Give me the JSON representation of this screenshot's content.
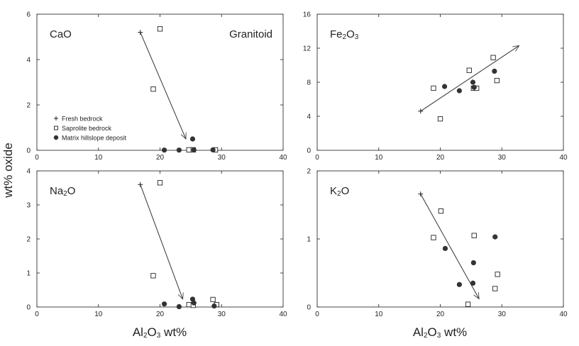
{
  "figure": {
    "ylabel": "wt% oxide",
    "xlabel_left": "Al2O3 wt%",
    "xlabel_right": "Al2O3 wt%",
    "annotation": "Granitoid"
  },
  "legend": {
    "entries": [
      {
        "label": "Fresh bedrock",
        "marker": "plus"
      },
      {
        "label": "Saprolite bedrock",
        "marker": "open-square"
      },
      {
        "label": "Matrix hillslope deposit",
        "marker": "filled-circle"
      }
    ]
  },
  "chart_data": [
    {
      "type": "scatter",
      "panel": "top-left",
      "title": "CaO",
      "xlabel": "",
      "ylabel": "",
      "xlim": [
        0,
        40
      ],
      "ylim": [
        0,
        6
      ],
      "xticks": [
        0,
        10,
        20,
        30,
        40
      ],
      "yticks": [
        0,
        2,
        4,
        6
      ],
      "series": [
        {
          "name": "Fresh bedrock",
          "marker": "plus",
          "x": [
            16.8
          ],
          "y": [
            5.2
          ]
        },
        {
          "name": "Saprolite bedrock",
          "marker": "open-square",
          "x": [
            20.0,
            18.9,
            24.7,
            25.4,
            29.0
          ],
          "y": [
            5.35,
            2.7,
            0.02,
            0.02,
            0.02
          ]
        },
        {
          "name": "Matrix hillslope deposit",
          "marker": "filled-circle",
          "x": [
            20.7,
            23.1,
            25.3,
            25.5,
            28.6
          ],
          "y": [
            0.01,
            0.01,
            0.5,
            0.02,
            0.02
          ]
        }
      ],
      "arrow": {
        "from": [
          16.8,
          5.2
        ],
        "to": [
          24.2,
          0.5
        ]
      }
    },
    {
      "type": "scatter",
      "panel": "top-right",
      "title": "Fe2O3",
      "xlabel": "",
      "ylabel": "",
      "xlim": [
        0,
        40
      ],
      "ylim": [
        0,
        16
      ],
      "xticks": [
        0,
        10,
        20,
        30,
        40
      ],
      "yticks": [
        0,
        4,
        8,
        12,
        16
      ],
      "series": [
        {
          "name": "Fresh bedrock",
          "marker": "plus",
          "x": [
            16.8
          ],
          "y": [
            4.6
          ]
        },
        {
          "name": "Saprolite bedrock",
          "marker": "open-square",
          "x": [
            18.9,
            20.0,
            24.7,
            25.4,
            25.9,
            28.6,
            29.2
          ],
          "y": [
            7.3,
            3.7,
            9.4,
            7.3,
            7.3,
            10.9,
            8.2
          ]
        },
        {
          "name": "Matrix hillslope deposit",
          "marker": "filled-circle",
          "x": [
            20.7,
            23.1,
            25.3,
            25.5,
            28.8
          ],
          "y": [
            7.5,
            7.0,
            8.0,
            7.4,
            9.3
          ]
        }
      ],
      "arrow": {
        "from": [
          16.8,
          4.6
        ],
        "to": [
          32.8,
          12.3
        ]
      }
    },
    {
      "type": "scatter",
      "panel": "bottom-left",
      "title": "Na2O",
      "xlabel": "Al2O3 wt%",
      "ylabel": "",
      "xlim": [
        0,
        40
      ],
      "ylim": [
        0,
        4
      ],
      "xticks": [
        0,
        10,
        20,
        30,
        40
      ],
      "yticks": [
        0,
        1,
        2,
        3,
        4
      ],
      "series": [
        {
          "name": "Fresh bedrock",
          "marker": "plus",
          "x": [
            16.8
          ],
          "y": [
            3.6
          ]
        },
        {
          "name": "Saprolite bedrock",
          "marker": "open-square",
          "x": [
            20.0,
            18.9,
            24.7,
            25.4,
            28.6,
            29.2
          ],
          "y": [
            3.65,
            0.92,
            0.07,
            0.05,
            0.22,
            0.07
          ]
        },
        {
          "name": "Matrix hillslope deposit",
          "marker": "filled-circle",
          "x": [
            20.7,
            23.1,
            25.3,
            25.5,
            28.8
          ],
          "y": [
            0.09,
            0.01,
            0.23,
            0.12,
            0.03
          ]
        }
      ],
      "arrow": {
        "from": [
          16.8,
          3.6
        ],
        "to": [
          23.7,
          0.23
        ]
      }
    },
    {
      "type": "scatter",
      "panel": "bottom-right",
      "title": "K2O",
      "xlabel": "Al2O3 wt%",
      "ylabel": "",
      "xlim": [
        0,
        40
      ],
      "ylim": [
        0,
        2
      ],
      "xticks": [
        0,
        10,
        20,
        30,
        40
      ],
      "yticks": [
        0,
        1,
        2
      ],
      "series": [
        {
          "name": "Fresh bedrock",
          "marker": "plus",
          "x": [
            16.8
          ],
          "y": [
            1.66
          ]
        },
        {
          "name": "Saprolite bedrock",
          "marker": "open-square",
          "x": [
            20.1,
            18.9,
            25.5,
            29.3,
            28.9,
            24.5
          ],
          "y": [
            1.41,
            1.02,
            1.05,
            0.48,
            0.27,
            0.04
          ]
        },
        {
          "name": "Matrix hillslope deposit",
          "marker": "filled-circle",
          "x": [
            20.8,
            25.4,
            28.9,
            25.3,
            23.1
          ],
          "y": [
            0.86,
            0.65,
            1.03,
            0.35,
            0.33
          ]
        }
      ],
      "arrow": {
        "from": [
          16.8,
          1.66
        ],
        "to": [
          26.3,
          0.12
        ]
      }
    }
  ]
}
